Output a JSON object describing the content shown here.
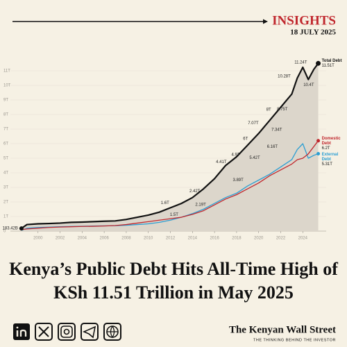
{
  "header": {
    "label": "INSIGHTS",
    "date": "18 JULY 2025"
  },
  "headline": [
    "Kenya’s Public Debt Hits All-Time High of",
    "KSh 11.51 Trillion in May 2025"
  ],
  "footer": {
    "brand": "The Kenyan Wall Street",
    "tagline": "THE THINKING BEHIND THE INVESTOR"
  },
  "chart_data": {
    "type": "line",
    "xlim": [
      1997.5,
      2027
    ],
    "xticks": [
      2000,
      2002,
      2004,
      2006,
      2008,
      2010,
      2012,
      2014,
      2016,
      2018,
      2020,
      2022,
      2024
    ],
    "ylim": [
      0,
      12
    ],
    "yticks": [
      0,
      {
        "value": 1,
        "label": "1T"
      },
      {
        "value": 2,
        "label": "2T"
      },
      {
        "value": 3,
        "label": "3T"
      },
      {
        "value": 4,
        "label": "4T"
      },
      {
        "value": 5,
        "label": "5T"
      },
      {
        "value": 6,
        "label": "6T"
      },
      {
        "value": 7,
        "label": "7T"
      },
      {
        "value": 8,
        "label": "8T"
      },
      {
        "value": 9,
        "label": "9T"
      },
      {
        "value": 10,
        "label": "10T"
      },
      {
        "value": 11,
        "label": "11T"
      }
    ],
    "area_color": "#dcd6cb",
    "x": [
      1998.5,
      1999,
      2000,
      2001,
      2002,
      2003,
      2004,
      2005,
      2006,
      2007,
      2008,
      2009,
      2010,
      2011,
      2012,
      2013,
      2014,
      2015,
      2016,
      2017,
      2018,
      2019,
      2020,
      2021,
      2022,
      2023,
      2023.5,
      2024,
      2024.5,
      2025,
      2025.4
    ],
    "series": [
      {
        "name": "Total Debt",
        "color": "#111111",
        "start_label": "183.42B",
        "end_label": "11.51T",
        "values": [
          0.18342,
          0.45,
          0.5,
          0.52,
          0.55,
          0.6,
          0.62,
          0.65,
          0.68,
          0.7,
          0.8,
          0.95,
          1.1,
          1.3,
          1.6,
          1.9,
          2.3,
          2.9,
          3.6,
          4.5,
          5.1,
          5.9,
          6.7,
          7.6,
          8.5,
          9.4,
          10.5,
          11.24,
          10.4,
          11.1,
          11.51
        ]
      },
      {
        "name": "Domestic Debt",
        "color": "#c0272d",
        "end_label": "6.2T",
        "values": [
          0.1,
          0.15,
          0.2,
          0.25,
          0.28,
          0.3,
          0.32,
          0.33,
          0.35,
          0.38,
          0.45,
          0.55,
          0.65,
          0.75,
          0.85,
          0.95,
          1.15,
          1.4,
          1.8,
          2.2,
          2.5,
          2.9,
          3.3,
          3.8,
          4.2,
          4.6,
          4.9,
          5.0,
          5.3,
          5.8,
          6.2
        ]
      },
      {
        "name": "External Debt",
        "color": "#2b9ed3",
        "end_label": "5.31T",
        "values": [
          0.05,
          0.2,
          0.25,
          0.27,
          0.3,
          0.32,
          0.33,
          0.35,
          0.36,
          0.37,
          0.4,
          0.45,
          0.5,
          0.6,
          0.75,
          0.95,
          1.2,
          1.5,
          1.9,
          2.3,
          2.6,
          3.1,
          3.5,
          3.9,
          4.4,
          4.9,
          5.6,
          6.0,
          5.0,
          5.2,
          5.31
        ]
      }
    ],
    "labels_above": [
      {
        "x": 2011.7,
        "y": 1.6,
        "label": "1.6T"
      },
      {
        "x": 2014.4,
        "y": 2.42,
        "label": "2.42T"
      },
      {
        "x": 2016.8,
        "y": 4.41,
        "label": "4.41T"
      },
      {
        "x": 2018.1,
        "y": 4.9,
        "label": "4.9T"
      },
      {
        "x": 2019.0,
        "y": 6,
        "label": "6T"
      },
      {
        "x": 2019.7,
        "y": 7.07,
        "label": "7.07T"
      },
      {
        "x": 2021.1,
        "y": 8,
        "label": "8T"
      },
      {
        "x": 2022.5,
        "y": 10.28,
        "label": "10.28T"
      },
      {
        "x": 2024.0,
        "y": 11.24,
        "label": "11.24T"
      }
    ],
    "labels_below": [
      {
        "x": 2011.9,
        "y": 1.5,
        "label": "1.5T"
      },
      {
        "x": 2014.3,
        "y": 2.19,
        "label": "2.19T"
      },
      {
        "x": 2017.7,
        "y": 3.89,
        "label": "3.89T"
      },
      {
        "x": 2019.2,
        "y": 5.42,
        "label": "5.42T"
      },
      {
        "x": 2020.8,
        "y": 6.16,
        "label": "6.16T"
      },
      {
        "x": 2021.2,
        "y": 7.34,
        "label": "7.34T"
      },
      {
        "x": 2021.7,
        "y": 8.75,
        "label": "8.75T"
      },
      {
        "x": 2024.1,
        "y": 10.4,
        "label": "10.4T"
      }
    ]
  }
}
